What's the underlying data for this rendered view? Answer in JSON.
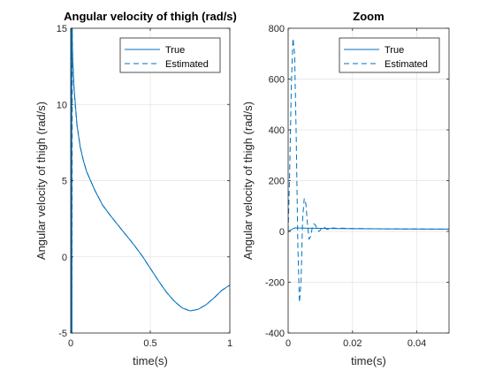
{
  "figure": {
    "background": "#ffffff",
    "line_color": "#0072bd",
    "grid_color": "#e3e3e3",
    "axes_color": "#262626"
  },
  "chart_data": [
    {
      "type": "line",
      "title": "Angular velocity of thigh (rad/s)",
      "xlabel": "time(s)",
      "ylabel": "Angular velocity of thigh (rad/s)",
      "xlim": [
        0,
        1
      ],
      "ylim": [
        -5,
        15
      ],
      "xticks": [
        0,
        0.5,
        1
      ],
      "xtick_labels": [
        "0",
        "0.5",
        "1"
      ],
      "yticks": [
        -5,
        0,
        5,
        10,
        15
      ],
      "ytick_labels": [
        "-5",
        "0",
        "5",
        "10",
        "15"
      ],
      "grid": true,
      "legend": {
        "location": "top-right",
        "entries": [
          "True",
          "Estimated"
        ]
      },
      "series": [
        {
          "name": "True",
          "style": "solid",
          "x": [
            0,
            0.004,
            0.008,
            0.012,
            0.02,
            0.04,
            0.06,
            0.08,
            0.1,
            0.15,
            0.2,
            0.25,
            0.3,
            0.35,
            0.4,
            0.45,
            0.5,
            0.55,
            0.6,
            0.65,
            0.7,
            0.75,
            0.8,
            0.85,
            0.9,
            0.95,
            1.0
          ],
          "y": [
            -5,
            15,
            14.5,
            13.2,
            11.2,
            8.6,
            7.2,
            6.3,
            5.6,
            4.4,
            3.4,
            2.7,
            2.05,
            1.4,
            0.75,
            0.05,
            -0.75,
            -1.55,
            -2.3,
            -2.9,
            -3.35,
            -3.55,
            -3.45,
            -3.15,
            -2.7,
            -2.2,
            -1.85
          ]
        },
        {
          "name": "Estimated",
          "style": "dashed",
          "x": [
            0,
            0.002,
            0.004,
            0.006,
            0.008,
            0.01,
            0.012,
            0.015,
            0.02,
            0.03,
            0.04,
            0.06,
            0.08,
            0.1,
            0.15,
            0.2,
            0.25,
            0.3,
            0.35,
            0.4,
            0.45,
            0.5,
            0.55,
            0.6,
            0.65,
            0.7,
            0.75,
            0.8,
            0.85,
            0.9,
            0.95,
            1.0
          ],
          "y": [
            -5,
            15,
            -5,
            15,
            -5,
            15,
            13,
            12.5,
            11.2,
            9.7,
            8.6,
            7.2,
            6.3,
            5.6,
            4.4,
            3.4,
            2.7,
            2.05,
            1.4,
            0.75,
            0.05,
            -0.75,
            -1.55,
            -2.3,
            -2.9,
            -3.35,
            -3.55,
            -3.45,
            -3.15,
            -2.7,
            -2.2,
            -1.85
          ]
        }
      ]
    },
    {
      "type": "line",
      "title": "Zoom",
      "xlabel": "time(s)",
      "ylabel": "Angular velocity of thigh (rad/s)",
      "xlim": [
        0,
        0.05
      ],
      "ylim": [
        -400,
        800
      ],
      "xticks": [
        0,
        0.02,
        0.04
      ],
      "xtick_labels": [
        "0",
        "0.02",
        "0.04"
      ],
      "yticks": [
        -400,
        -200,
        0,
        200,
        400,
        600,
        800
      ],
      "ytick_labels": [
        "-400",
        "-200",
        "0",
        "200",
        "400",
        "600",
        "800"
      ],
      "grid": true,
      "legend": {
        "location": "top-right",
        "entries": [
          "True",
          "Estimated"
        ]
      },
      "series": [
        {
          "name": "True",
          "style": "solid",
          "x": [
            0,
            0.002,
            0.005,
            0.01,
            0.02,
            0.03,
            0.04,
            0.05
          ],
          "y": [
            0,
            14,
            13,
            12,
            11,
            10,
            9.5,
            9
          ]
        },
        {
          "name": "Estimated",
          "style": "dashed",
          "x": [
            0,
            0.0005,
            0.001,
            0.0015,
            0.002,
            0.0025,
            0.003,
            0.0035,
            0.004,
            0.0045,
            0.005,
            0.0055,
            0.006,
            0.0065,
            0.007,
            0.0075,
            0.008,
            0.0085,
            0.009,
            0.0095,
            0.01,
            0.0105,
            0.011,
            0.0115,
            0.012,
            0.0125,
            0.013,
            0.014,
            0.015,
            0.016,
            0.018,
            0.02,
            0.025,
            0.03,
            0.035,
            0.04,
            0.045,
            0.05
          ],
          "y": [
            0,
            250,
            580,
            760,
            700,
            380,
            -50,
            -280,
            -200,
            50,
            130,
            110,
            30,
            -30,
            -20,
            15,
            30,
            25,
            10,
            0,
            5,
            15,
            20,
            14,
            9,
            8,
            12,
            14,
            12,
            13,
            12,
            11.5,
            11,
            10,
            9.8,
            9.5,
            9.2,
            9
          ]
        }
      ]
    }
  ]
}
